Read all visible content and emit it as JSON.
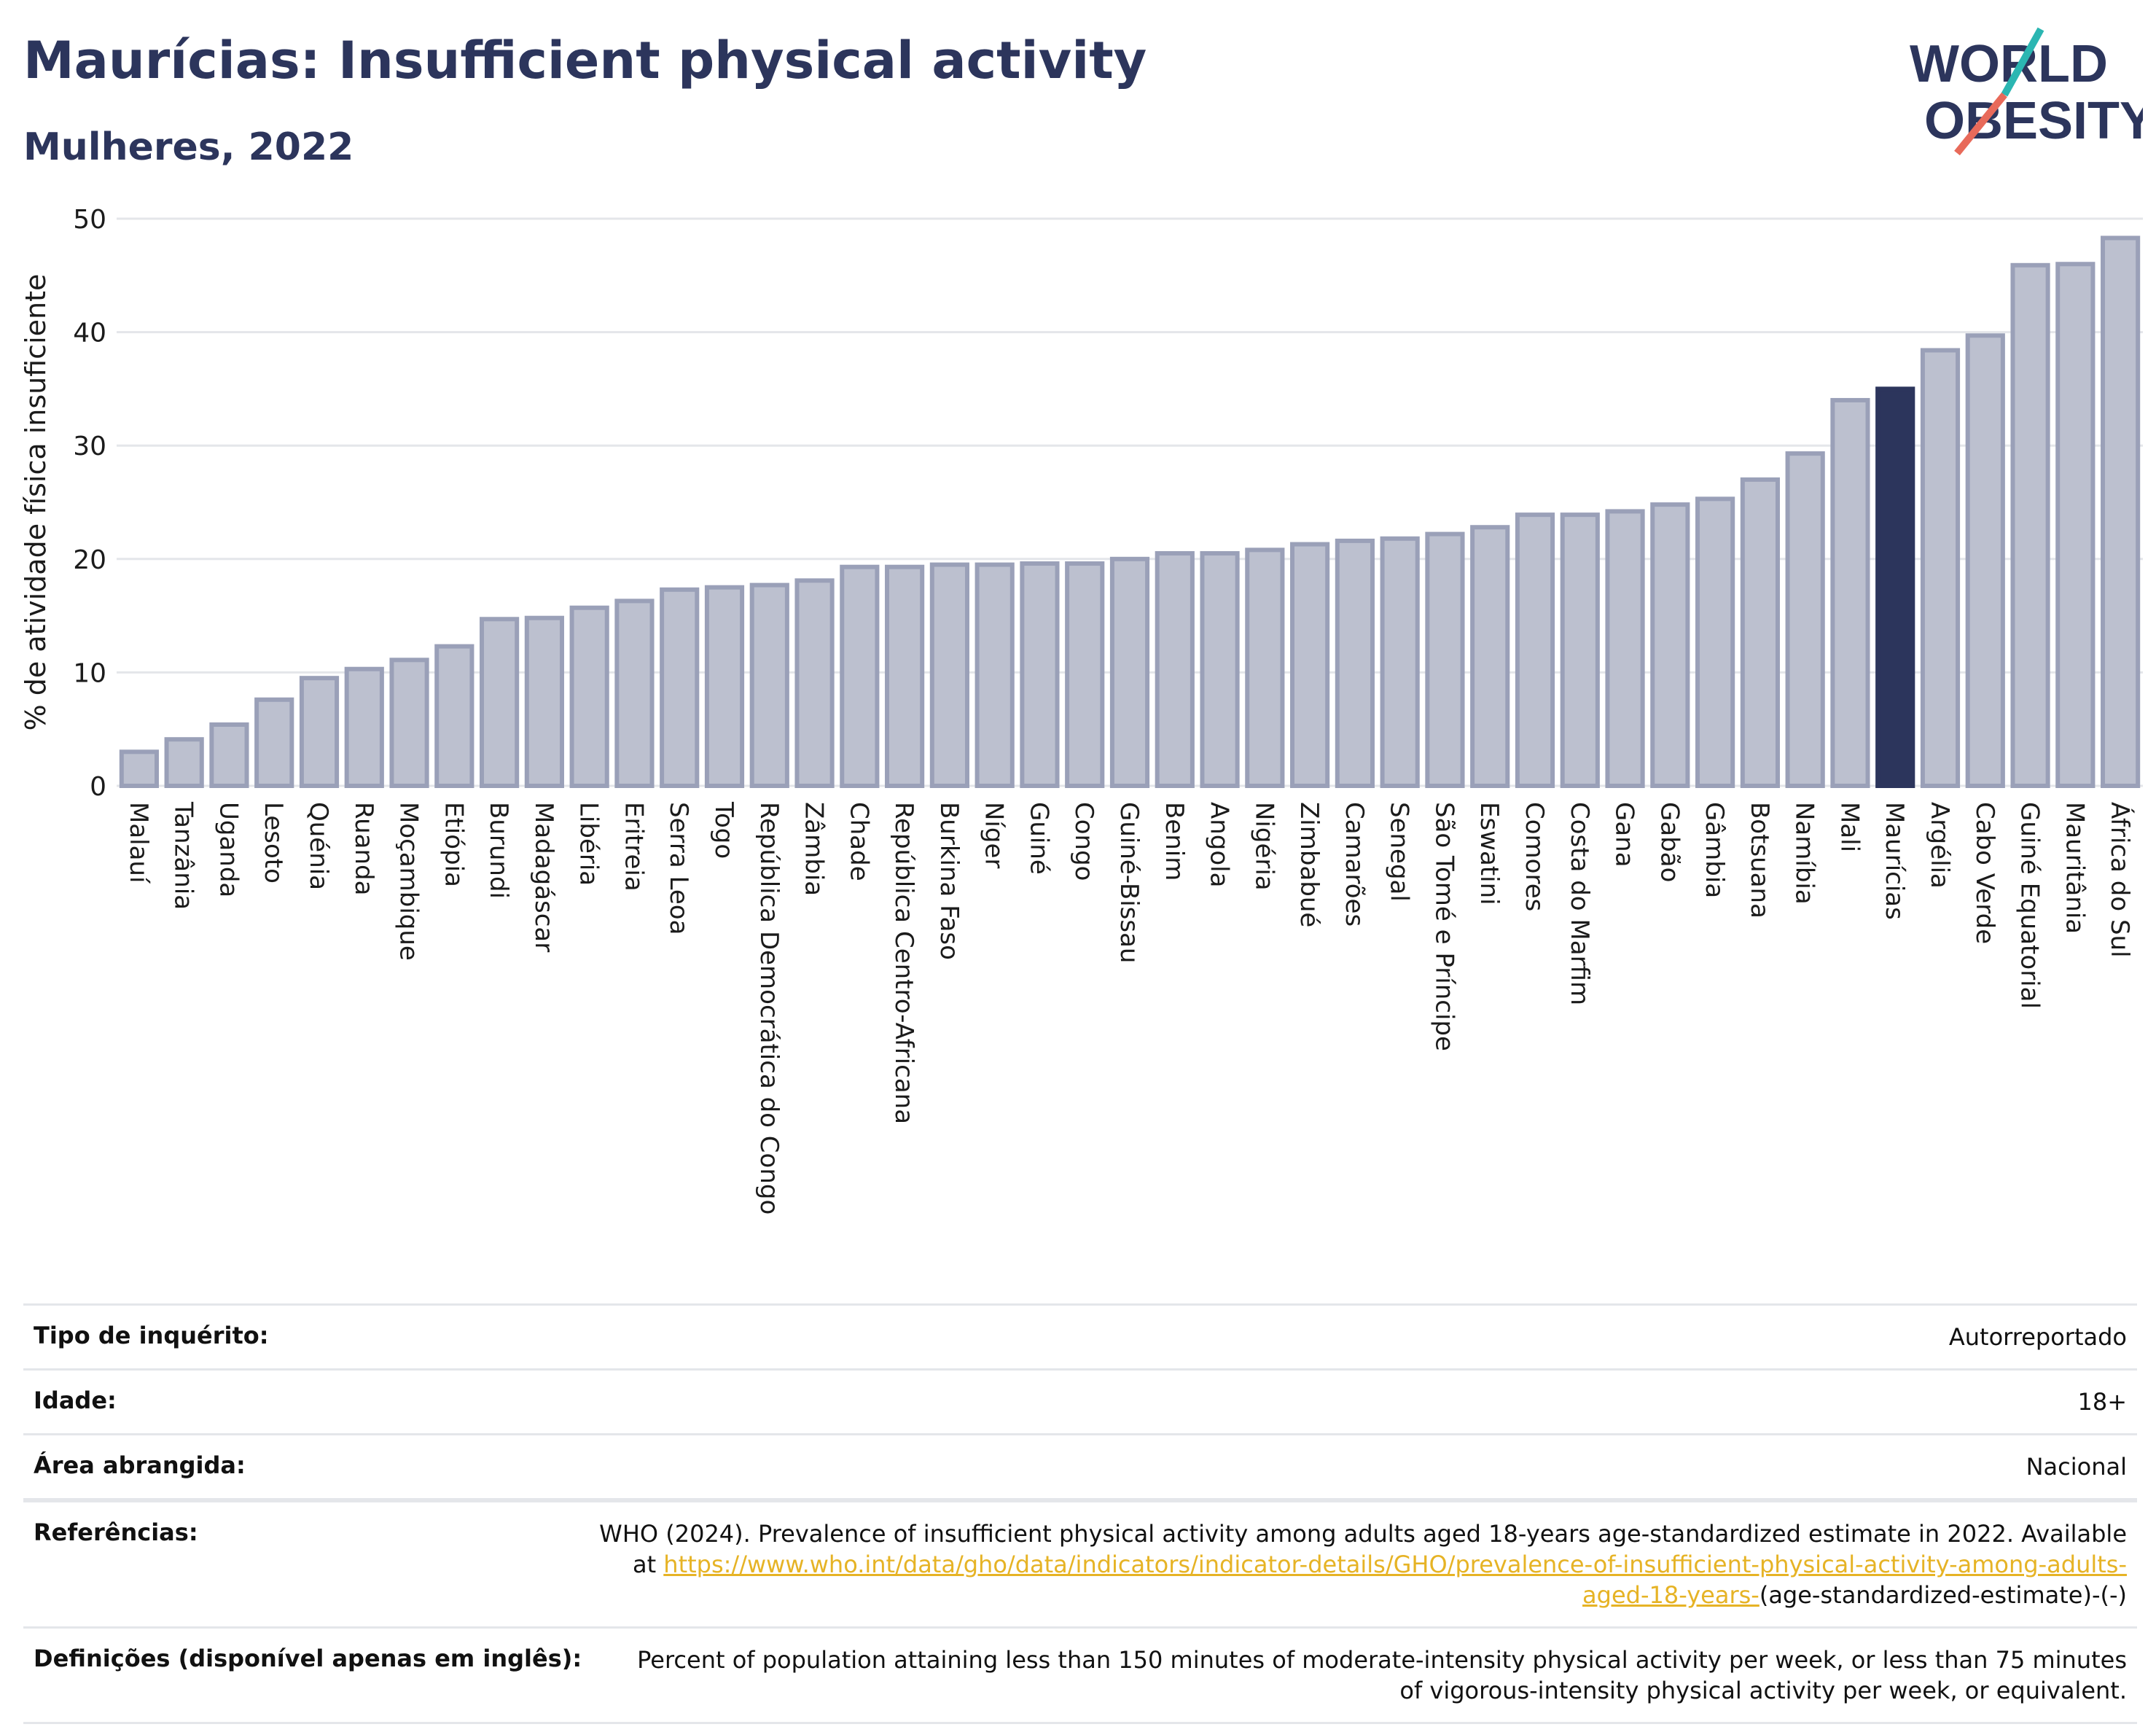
{
  "header": {
    "title": "Maurícias: Insufficient physical activity",
    "subtitle": "Mulheres, 2022",
    "logo_line1": "WORLD",
    "logo_line2": "OBESITY"
  },
  "colors": {
    "bar_default": "#bcc0cf",
    "bar_default_stroke": "#9aa0b8",
    "bar_highlight": "#2c355c",
    "title": "#2c355c",
    "link": "#e6b325",
    "logo_teal": "#2bb6b2",
    "logo_coral": "#e86a5a"
  },
  "chart_data": {
    "type": "bar",
    "ylabel": "% de atividade física insuficiente",
    "xlabel": "",
    "ylim": [
      0,
      50
    ],
    "yticks": [
      0,
      10,
      20,
      30,
      40,
      50
    ],
    "grid": true,
    "highlight": "Maurícias",
    "categories": [
      "Malauí",
      "Tanzânia",
      "Uganda",
      "Lesoto",
      "Quénia",
      "Ruanda",
      "Moçambique",
      "Etiópia",
      "Burundi",
      "Madagáscar",
      "Libéria",
      "Eritreia",
      "Serra Leoa",
      "Togo",
      "República Democrática do Congo",
      "Zâmbia",
      "Chade",
      "República Centro-Africana",
      "Burkina Faso",
      "Níger",
      "Guiné",
      "Congo",
      "Guiné-Bissau",
      "Benim",
      "Angola",
      "Nigéria",
      "Zimbabué",
      "Camarões",
      "Senegal",
      "São Tomé e Príncipe",
      "Eswatini",
      "Comores",
      "Costa do Marfim",
      "Gana",
      "Gabão",
      "Gâmbia",
      "Botsuana",
      "Namíbia",
      "Mali",
      "Maurícias",
      "Argélia",
      "Cabo Verde",
      "Guiné Equatorial",
      "Mauritânia",
      "África do Sul"
    ],
    "values": [
      3.0,
      4.1,
      5.4,
      7.6,
      9.5,
      10.3,
      11.1,
      12.3,
      14.7,
      14.8,
      15.7,
      16.3,
      17.3,
      17.5,
      17.7,
      18.1,
      19.3,
      19.3,
      19.5,
      19.5,
      19.6,
      19.6,
      20.0,
      20.5,
      20.5,
      20.8,
      21.3,
      21.6,
      21.8,
      22.2,
      22.8,
      23.9,
      23.9,
      24.2,
      24.8,
      25.3,
      27.0,
      29.3,
      34.0,
      35.0,
      38.4,
      39.7,
      45.9,
      46.0,
      48.3
    ]
  },
  "meta": {
    "rows": [
      {
        "label": "Tipo de inquérito:",
        "value": "Autorreportado"
      },
      {
        "label": "Idade:",
        "value": "18+"
      },
      {
        "label": "Área abrangida:",
        "value": "Nacional"
      }
    ],
    "references_label": "Referências:",
    "references_text": "WHO (2024). Prevalence of insufficient physical activity among adults aged 18-years age-standardized estimate in 2022. Available at",
    "references_link": "https://www.who.int/data/gho/data/indicators/indicator-details/GHO/prevalence-of-insufficient-physical-activity-among-adults-aged-18-years-",
    "references_suffix": "(age-standardized-estimate)-(-)",
    "definitions_label": "Definições (disponível apenas em inglês):",
    "definitions_text": "Percent of population attaining less than 150 minutes of moderate-intensity physical activity per week, or less than 75 minutes of vigorous-intensity physical activity per week, or equivalent."
  }
}
